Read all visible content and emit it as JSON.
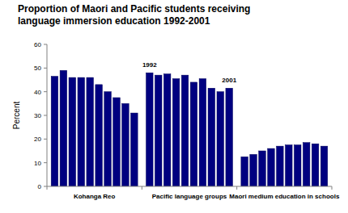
{
  "chart_data": {
    "type": "bar",
    "title": "Proportion of Maori and Pacific students receiving language immersion education 1992-2001",
    "y_label": "Percent",
    "color": "#000080",
    "ylim": [
      0,
      60
    ],
    "yticks": [
      0,
      10,
      20,
      30,
      40,
      50,
      60
    ],
    "grid": false,
    "series": [
      {
        "name": "Kohanga Reo",
        "values": [
          46.5,
          49,
          46,
          46,
          46,
          43,
          40,
          37.5,
          35,
          31
        ]
      },
      {
        "name": "Pacific language groups",
        "values": [
          48,
          47,
          47.5,
          45.5,
          47,
          44,
          45.5,
          41.5,
          40,
          41.5
        ]
      },
      {
        "name": "Maori medium education in schools",
        "values": [
          12.5,
          13.5,
          15,
          16,
          17,
          17.5,
          17.5,
          18.5,
          18,
          17
        ]
      }
    ],
    "annotations": [
      {
        "text": "1992"
      },
      {
        "text": "2001"
      }
    ]
  }
}
